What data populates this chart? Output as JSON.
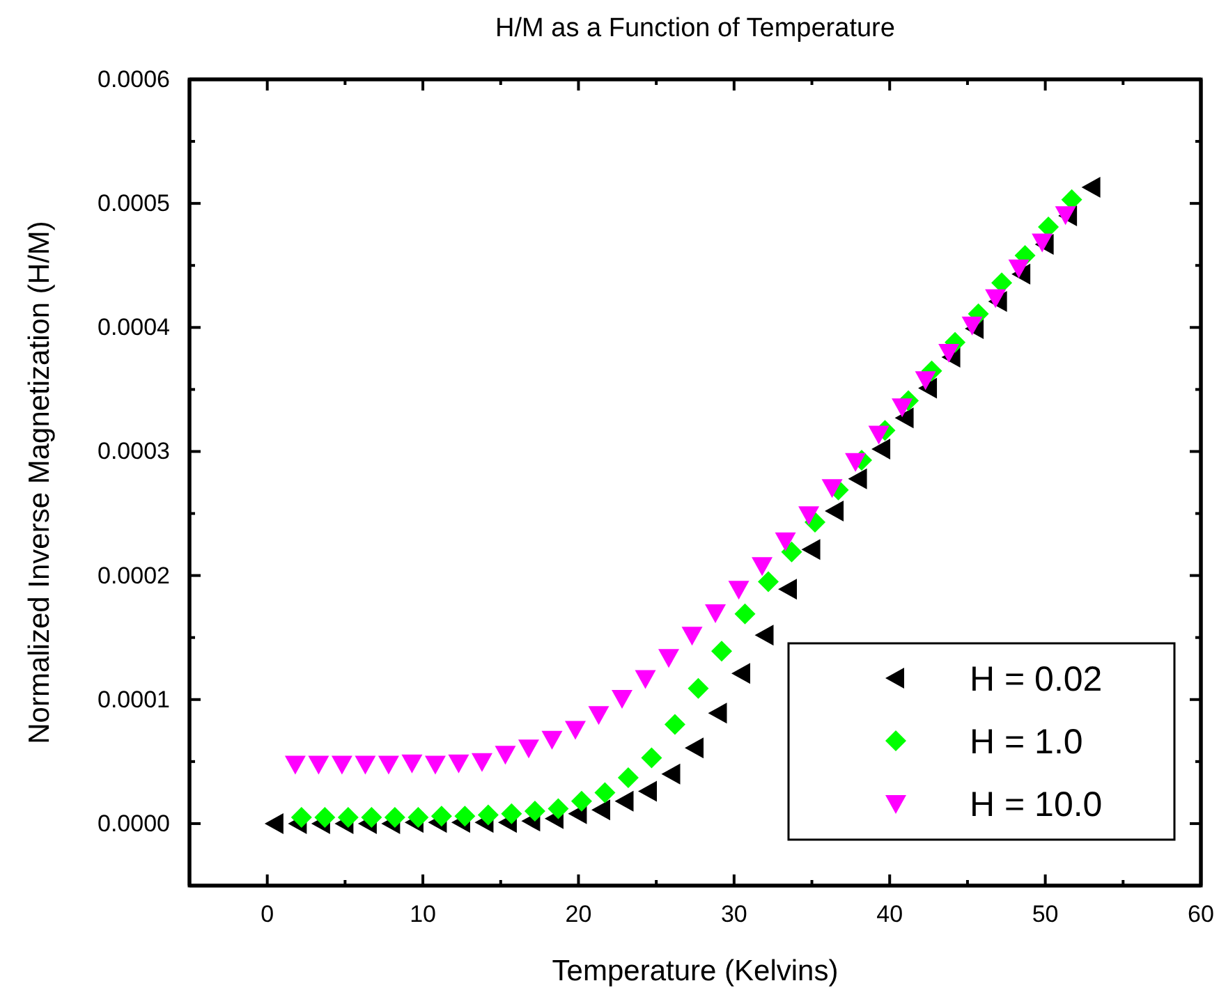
{
  "chart_data": {
    "type": "scatter",
    "title": "H/M as a Function of Temperature",
    "xlabel": "Temperature (Kelvins)",
    "ylabel": "Normalized Inverse Magnetization (H/M)",
    "xlim": [
      -5,
      60
    ],
    "ylim": [
      -5e-05,
      0.0006
    ],
    "xticks": [
      0,
      {
        "value": 5,
        "label": null
      },
      10,
      {
        "value": 15,
        "label": null
      },
      20,
      {
        "value": 25,
        "label": null
      },
      30,
      {
        "value": 35,
        "label": null
      },
      40,
      {
        "value": 45,
        "label": null
      },
      50,
      {
        "value": 55,
        "label": null
      },
      60
    ],
    "yticks": [
      {
        "value": 0,
        "label": "0.0000"
      },
      {
        "value": 5e-05,
        "label": null
      },
      {
        "value": 0.0001,
        "label": "0.0001"
      },
      {
        "value": 0.00015,
        "label": null
      },
      {
        "value": 0.0002,
        "label": "0.0002"
      },
      {
        "value": 0.00025,
        "label": null
      },
      {
        "value": 0.0003,
        "label": "0.0003"
      },
      {
        "value": 0.00035,
        "label": null
      },
      {
        "value": 0.0004,
        "label": "0.0004"
      },
      {
        "value": 0.00045,
        "label": null
      },
      {
        "value": 0.0005,
        "label": "0.0005"
      },
      {
        "value": 0.00055,
        "label": null
      },
      {
        "value": 0.0006,
        "label": "0.0006"
      }
    ],
    "grid": false,
    "legend": "bottom right",
    "series": [
      {
        "name": "H = 0.02",
        "color": "#000000",
        "marker": "triangle-left",
        "x": [
          0.5,
          2,
          3.5,
          5,
          6.5,
          8,
          9.5,
          11,
          12.5,
          14,
          15.5,
          17,
          18.5,
          20,
          21.5,
          23,
          24.5,
          26,
          27.5,
          29,
          30.5,
          32,
          33.5,
          35,
          36.5,
          38,
          39.5,
          41,
          42.5,
          44,
          45.5,
          47,
          48.5,
          50,
          51.5,
          53
        ],
        "values": [
          0,
          0,
          0,
          0,
          0,
          0,
          1e-06,
          1e-06,
          1e-06,
          1e-06,
          1e-06,
          2e-06,
          4e-06,
          8e-06,
          1.1e-05,
          1.8e-05,
          2.6e-05,
          4e-05,
          6.1e-05,
          8.9e-05,
          0.000121,
          0.000152,
          0.000189,
          0.000221,
          0.000252,
          0.000278,
          0.000302,
          0.000327,
          0.000351,
          0.000376,
          0.000399,
          0.000421,
          0.000443,
          0.000467,
          0.00049,
          0.000513
        ]
      },
      {
        "name": "H = 1.0",
        "color": "#00ff00",
        "marker": "diamond",
        "x": [
          2.2,
          3.7,
          5.2,
          6.7,
          8.2,
          9.7,
          11.2,
          12.7,
          14.2,
          15.7,
          17.2,
          18.7,
          20.2,
          21.7,
          23.2,
          24.7,
          26.2,
          27.7,
          29.2,
          30.7,
          32.2,
          33.7,
          35.2,
          36.7,
          38.2,
          39.7,
          41.2,
          42.7,
          44.2,
          45.7,
          47.2,
          48.7,
          50.2,
          51.7
        ],
        "values": [
          5e-06,
          5e-06,
          5e-06,
          5e-06,
          5e-06,
          5e-06,
          6e-06,
          6e-06,
          7e-06,
          8e-06,
          1e-05,
          1.2e-05,
          1.8e-05,
          2.5e-05,
          3.7e-05,
          5.3e-05,
          8e-05,
          0.000109,
          0.000139,
          0.000169,
          0.000195,
          0.000219,
          0.000243,
          0.000269,
          0.000293,
          0.000317,
          0.000341,
          0.000365,
          0.000388,
          0.000411,
          0.000436,
          0.000458,
          0.000481,
          0.000503
        ]
      },
      {
        "name": "H = 10.0",
        "color": "#ff00ff",
        "marker": "triangle-down",
        "x": [
          1.8,
          3.3,
          4.8,
          6.3,
          7.8,
          9.3,
          10.8,
          12.3,
          13.8,
          15.3,
          16.8,
          18.3,
          19.8,
          21.3,
          22.8,
          24.3,
          25.8,
          27.3,
          28.8,
          30.3,
          31.8,
          33.3,
          34.8,
          36.3,
          37.8,
          39.3,
          40.8,
          42.3,
          43.8,
          45.3,
          46.8,
          48.3,
          49.8,
          51.3
        ],
        "values": [
          4.8e-05,
          4.8e-05,
          4.8e-05,
          4.8e-05,
          4.8e-05,
          4.9e-05,
          4.8e-05,
          4.9e-05,
          5e-05,
          5.6e-05,
          6.1e-05,
          6.8e-05,
          7.6e-05,
          8.8e-05,
          0.000101,
          0.000117,
          0.000134,
          0.000152,
          0.00017,
          0.000189,
          0.000208,
          0.000228,
          0.000249,
          0.000271,
          0.000292,
          0.000314,
          0.000336,
          0.000358,
          0.00038,
          0.000402,
          0.000424,
          0.000448,
          0.000469,
          0.000491
        ]
      }
    ]
  }
}
